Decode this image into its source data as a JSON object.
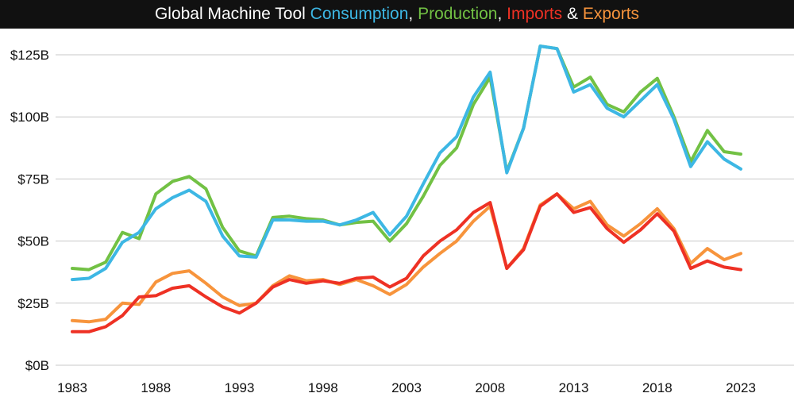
{
  "colors": {
    "consumption": "#3db7e4",
    "production": "#72c144",
    "imports": "#ee3124",
    "exports": "#f7943c",
    "title_bg": "#111111",
    "grid": "#c8c8c8"
  },
  "title_parts": {
    "prefix": "Global Machine Tool ",
    "consumption": "Consumption",
    "sep1": ", ",
    "production": "Production",
    "sep2": ", ",
    "imports": "Imports",
    "sep3": " & ",
    "exports": "Exports"
  },
  "chart_data": {
    "type": "line",
    "title": "Global Machine Tool Consumption, Production, Imports & Exports",
    "x": [
      1983,
      1984,
      1985,
      1986,
      1987,
      1988,
      1989,
      1990,
      1991,
      1992,
      1993,
      1994,
      1995,
      1996,
      1997,
      1998,
      1999,
      2000,
      2001,
      2002,
      2003,
      2004,
      2005,
      2006,
      2007,
      2008,
      2009,
      2010,
      2011,
      2012,
      2013,
      2014,
      2015,
      2016,
      2017,
      2018,
      2019,
      2020,
      2021,
      2022,
      2023
    ],
    "xticks": [
      1983,
      1988,
      1993,
      1998,
      2003,
      2008,
      2013,
      2018,
      2023
    ],
    "xlim": [
      1983,
      2026
    ],
    "ylim": [
      0,
      130
    ],
    "yticks": [
      0,
      25,
      50,
      75,
      100,
      125
    ],
    "ytick_labels": [
      "$0B",
      "$25B",
      "$50B",
      "$75B",
      "$100B",
      "$125B"
    ],
    "grid": "horizontal",
    "series": [
      {
        "name": "Production",
        "color_key": "production",
        "values": [
          39,
          38.5,
          41.5,
          53.5,
          51,
          69,
          74,
          76,
          71,
          55.5,
          46,
          44,
          59.5,
          60,
          59,
          58.5,
          56.5,
          57.5,
          58,
          50,
          57,
          68,
          80.5,
          87.5,
          105,
          116,
          78,
          95.5,
          128.5,
          127.5,
          112,
          116,
          105,
          102,
          110,
          115.5,
          100,
          82,
          94.5,
          86,
          85
        ]
      },
      {
        "name": "Consumption",
        "color_key": "consumption",
        "values": [
          34.5,
          35,
          39,
          49.5,
          53.5,
          63,
          67.5,
          70.5,
          66,
          52,
          44,
          43.5,
          58.5,
          58.5,
          58,
          58,
          56.5,
          58.5,
          61.5,
          52.5,
          60,
          73,
          85.5,
          92,
          108,
          118,
          77.5,
          95.5,
          128.5,
          127.5,
          110,
          113,
          103.5,
          100,
          106.5,
          113,
          99,
          80,
          90,
          83,
          79
        ]
      },
      {
        "name": "Exports",
        "color_key": "exports",
        "values": [
          18,
          17.5,
          18.5,
          25,
          24.5,
          33.5,
          37,
          38,
          33,
          27.5,
          24,
          25,
          32,
          36,
          34,
          34.5,
          32.5,
          34.5,
          32,
          28.5,
          32.5,
          39.5,
          45,
          50,
          58,
          64,
          39,
          47,
          64.5,
          69,
          63,
          66,
          56.5,
          52,
          57,
          63,
          55,
          41,
          47,
          42.5,
          45
        ]
      },
      {
        "name": "Imports",
        "color_key": "imports",
        "values": [
          13.5,
          13.5,
          15.5,
          20,
          27.5,
          28,
          31,
          32,
          27.5,
          23.5,
          21,
          25,
          31.5,
          34.5,
          33,
          34,
          33,
          35,
          35.5,
          31.5,
          35,
          44,
          50,
          54.5,
          61.5,
          65.5,
          39,
          46.5,
          64,
          69,
          61.5,
          63.5,
          55,
          49.5,
          54.5,
          61,
          54,
          39,
          42,
          39.5,
          38.5
        ]
      }
    ]
  }
}
